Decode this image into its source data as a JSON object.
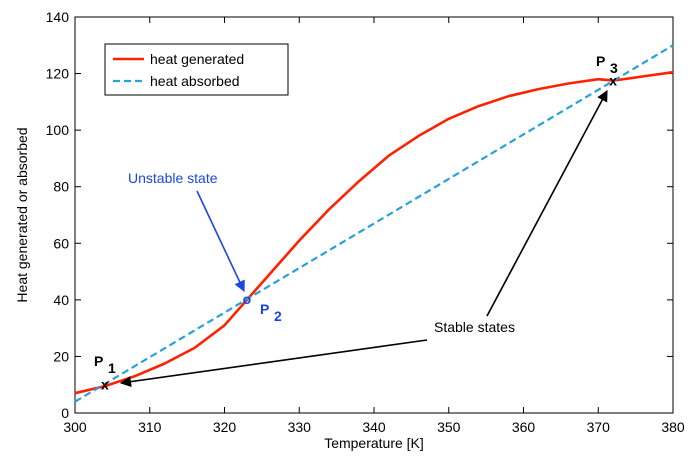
{
  "chart_data": {
    "type": "line",
    "title": "",
    "xlabel": "Temperature [K]",
    "ylabel": "Heat generated or absorbed",
    "xlim": [
      300,
      380
    ],
    "ylim": [
      0,
      140
    ],
    "x_ticks": [
      300,
      310,
      320,
      330,
      340,
      350,
      360,
      370,
      380
    ],
    "y_ticks": [
      0,
      20,
      40,
      60,
      80,
      100,
      120,
      140
    ],
    "grid": false,
    "legend_position": "top-left",
    "series": [
      {
        "name": "heat generated",
        "color": "#ff2200",
        "style": "solid",
        "x": [
          300,
          304,
          308,
          312,
          316,
          320,
          323,
          326,
          330,
          334,
          338,
          342,
          346,
          350,
          354,
          358,
          362,
          366,
          370,
          372,
          376,
          380
        ],
        "y": [
          7,
          9.5,
          13,
          17.5,
          23,
          31,
          40,
          49,
          61,
          72,
          82,
          91,
          98,
          104,
          108.5,
          112,
          114.5,
          116.5,
          118,
          117.5,
          119,
          120.5
        ]
      },
      {
        "name": "heat absorbed",
        "color": "#2aa0d8",
        "style": "dashed",
        "x": [
          300,
          380
        ],
        "y": [
          4,
          130
        ]
      }
    ],
    "annotations": {
      "unstable": "Unstable state",
      "stable": "Stable states",
      "p1": {
        "letter": "P",
        "sub": "1",
        "x": 304,
        "y": 10
      },
      "p2": {
        "letter": "P",
        "sub": "2",
        "x": 323,
        "y": 40
      },
      "p3": {
        "letter": "P",
        "sub": "3",
        "x": 372,
        "y": 117.5
      },
      "p2_marker": "o",
      "stable_marker": "x"
    }
  }
}
